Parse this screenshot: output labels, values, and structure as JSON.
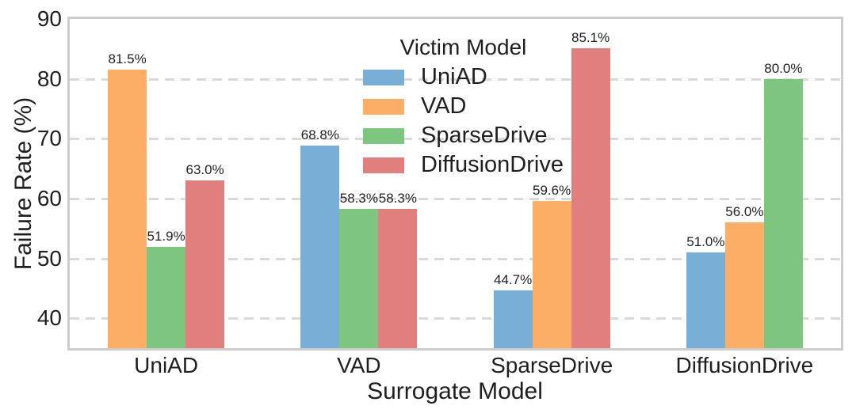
{
  "chart_data": {
    "type": "bar",
    "title": "",
    "xlabel": "Surrogate Model",
    "ylabel": "Failure Rate (%)",
    "ylim": [
      35,
      90
    ],
    "yticks": [
      40,
      50,
      60,
      70,
      80,
      90
    ],
    "grid": "horizontal-dashed",
    "categories": [
      "UniAD",
      "VAD",
      "SparseDrive",
      "DiffusionDrive"
    ],
    "legend": {
      "title": "Victim Model",
      "position": "upper-center",
      "frame": false
    },
    "series": [
      {
        "name": "UniAD",
        "color": "#79AED7",
        "values": [
          null,
          68.8,
          44.7,
          51.0
        ]
      },
      {
        "name": "VAD",
        "color": "#FDAE66",
        "values": [
          81.5,
          null,
          59.6,
          56.0
        ]
      },
      {
        "name": "SparseDrive",
        "color": "#7EC57F",
        "values": [
          51.9,
          58.3,
          null,
          80.0
        ]
      },
      {
        "name": "DiffusionDrive",
        "color": "#E17E7E",
        "values": [
          63.0,
          58.3,
          85.1,
          null
        ]
      }
    ],
    "bar_labels": [
      "81.5%",
      "51.9%",
      "63.0%",
      "68.8%",
      "58.3%",
      "58.3%",
      "44.7%",
      "59.6%",
      "85.1%",
      "51.0%",
      "56.0%",
      "80.0%"
    ],
    "bar_label_format": "one-decimal-percent"
  },
  "colors": {
    "background": "#ffffff",
    "spine": "#cdcdcd",
    "gridline": "#d9d9d9",
    "text": "#1f1f1f"
  }
}
